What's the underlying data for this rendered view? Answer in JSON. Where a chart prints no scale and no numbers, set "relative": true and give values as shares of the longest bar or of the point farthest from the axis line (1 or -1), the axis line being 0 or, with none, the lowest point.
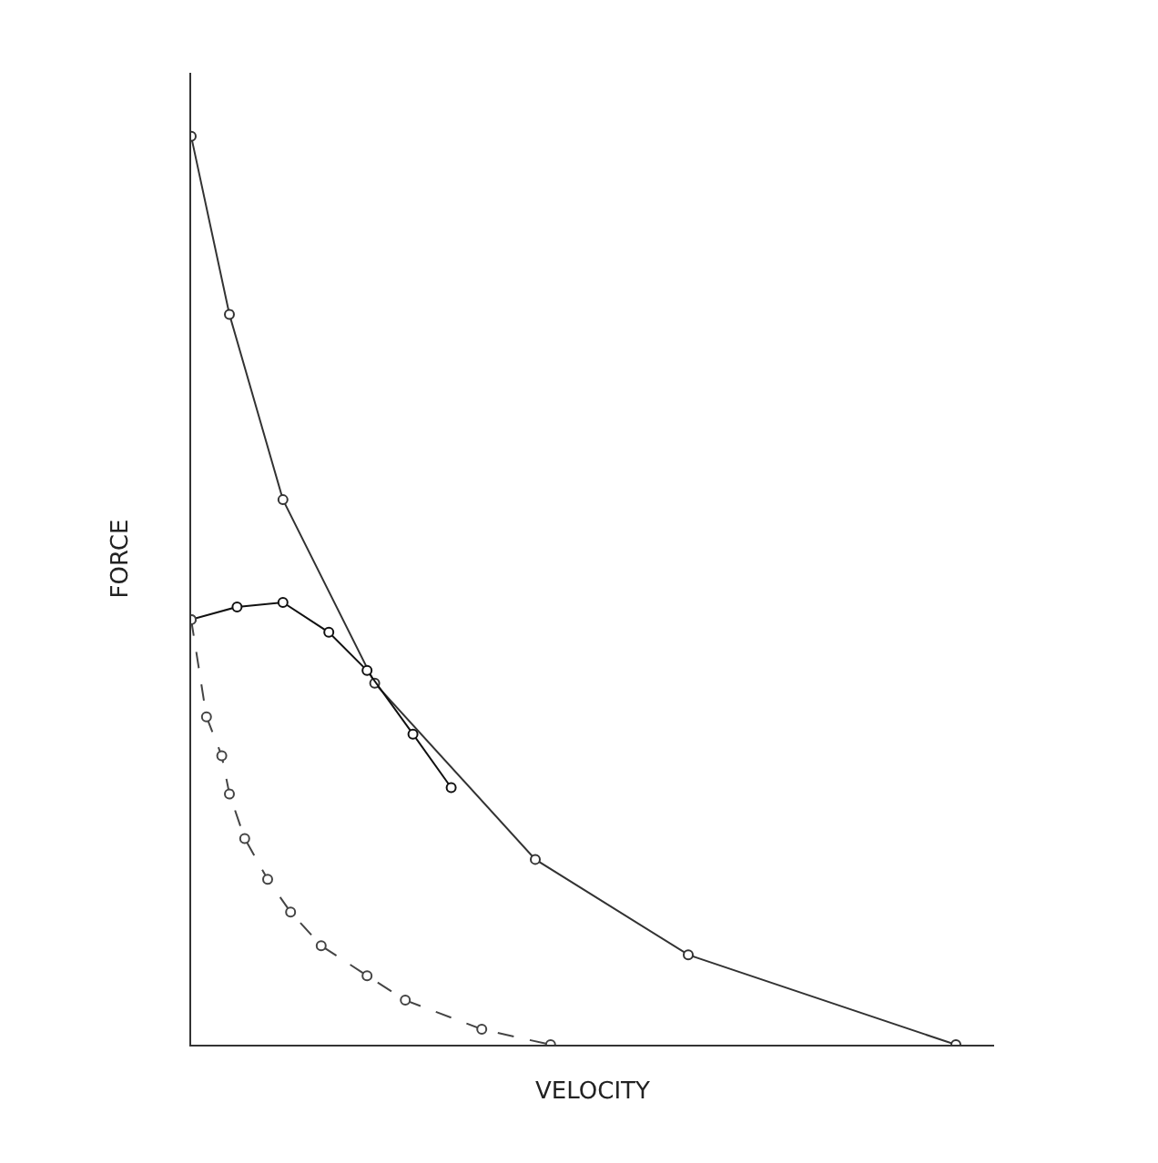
{
  "chart_data": {
    "type": "line",
    "relative": true,
    "xlabel": "VELOCITY",
    "ylabel": "FORCE",
    "marker": "circle",
    "tick_labels": false,
    "categories": [
      null,
      null,
      null,
      null,
      null,
      null,
      null,
      null,
      null,
      null,
      null,
      null,
      null,
      null,
      null,
      null,
      null,
      null,
      null,
      null,
      null,
      null,
      null,
      null,
      null,
      null,
      null,
      null,
      null,
      null,
      null,
      null,
      null,
      null,
      null,
      null,
      null,
      null,
      null,
      null,
      null,
      null,
      null,
      null,
      null,
      null,
      null,
      null,
      null,
      null,
      null,
      null,
      null,
      null,
      null,
      null,
      null,
      null,
      null,
      null,
      null,
      null,
      null,
      null,
      null,
      null,
      null,
      null,
      null,
      null,
      null,
      null,
      null,
      null,
      null,
      null,
      null,
      null,
      null,
      null,
      null,
      null,
      null,
      null,
      null,
      null,
      null,
      null,
      null,
      null,
      null,
      null,
      null,
      null,
      null,
      null,
      null,
      null,
      null,
      null,
      null
    ],
    "series": [
      {
        "color": "#333333",
        "line_style": "solid",
        "values": [
          1,
          null,
          null,
          null,
          null,
          0.804,
          null,
          null,
          null,
          null,
          null,
          null,
          0.6,
          null,
          null,
          null,
          null,
          null,
          null,
          null,
          null,
          null,
          null,
          null,
          0.398,
          null,
          null,
          null,
          null,
          null,
          null,
          null,
          null,
          null,
          null,
          null,
          null,
          null,
          null,
          null,
          null,
          null,
          null,
          null,
          null,
          0.204,
          null,
          null,
          null,
          null,
          null,
          null,
          null,
          null,
          null,
          null,
          null,
          null,
          null,
          null,
          null,
          null,
          null,
          null,
          null,
          0.099,
          null,
          null,
          null,
          null,
          null,
          null,
          null,
          null,
          null,
          null,
          null,
          null,
          null,
          null,
          null,
          null,
          null,
          null,
          null,
          null,
          null,
          null,
          null,
          null,
          null,
          null,
          null,
          null,
          null,
          null,
          null,
          null,
          null,
          null,
          0
        ]
      },
      {
        "color": "#111111",
        "line_style": "solid",
        "values": [
          0.468,
          null,
          null,
          null,
          null,
          null,
          0.482,
          null,
          null,
          null,
          null,
          null,
          0.487,
          null,
          null,
          null,
          null,
          null,
          0.454,
          null,
          null,
          null,
          null,
          0.412,
          null,
          null,
          null,
          null,
          null,
          0.342,
          null,
          null,
          null,
          null,
          0.283,
          null,
          null,
          null,
          null,
          null,
          null,
          null,
          null,
          null,
          null,
          null,
          null,
          null,
          null,
          null,
          null,
          null,
          null,
          null,
          null,
          null,
          null,
          null,
          null,
          null,
          null,
          null,
          null,
          null,
          null,
          null,
          null,
          null,
          null,
          null,
          null,
          null,
          null,
          null,
          null,
          null,
          null,
          null,
          null,
          null,
          null,
          null,
          null,
          null,
          null,
          null,
          null,
          null,
          null,
          null,
          null,
          null,
          null,
          null,
          null,
          null,
          null,
          null,
          null,
          null,
          null
        ]
      },
      {
        "color": "#444444",
        "line_style": "dashed",
        "values": [
          0.468,
          null,
          0.361,
          null,
          0.318,
          0.276,
          null,
          0.227,
          null,
          null,
          0.182,
          null,
          null,
          0.146,
          null,
          null,
          null,
          0.109,
          null,
          null,
          null,
          null,
          null,
          0.076,
          null,
          null,
          null,
          null,
          0.049,
          null,
          null,
          null,
          null,
          null,
          null,
          null,
          null,
          null,
          0.017,
          null,
          null,
          null,
          null,
          null,
          null,
          null,
          null,
          0,
          null,
          null,
          null,
          null,
          null,
          null,
          null,
          null,
          null,
          null,
          null,
          null,
          null,
          null,
          null,
          null,
          null,
          null,
          null,
          null,
          null,
          null,
          null,
          null,
          null,
          null,
          null,
          null,
          null,
          null,
          null,
          null,
          null,
          null,
          null,
          null,
          null,
          null,
          null,
          null,
          null,
          null,
          null,
          null,
          null,
          null,
          null,
          null,
          null,
          null,
          null,
          null,
          null
        ]
      }
    ]
  }
}
